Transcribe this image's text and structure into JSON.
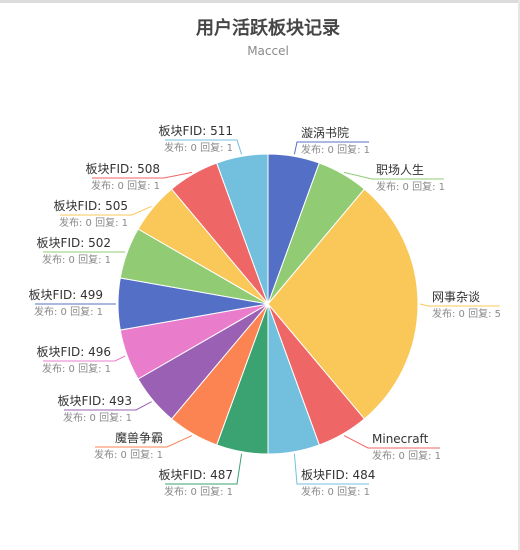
{
  "chart_data": {
    "type": "pie",
    "title": "用户活跃板块记录",
    "subtitle": "Maccel",
    "slices": [
      {
        "name": "漩涡书院",
        "detail": "发布: 0 回复: 1",
        "value": 1,
        "color": "#5470c6"
      },
      {
        "name": "职场人生",
        "detail": "发布: 0 回复: 1",
        "value": 1,
        "color": "#91cc75"
      },
      {
        "name": "网事杂谈",
        "detail": "发布: 0 回复: 5",
        "value": 5,
        "color": "#fac858"
      },
      {
        "name": "Minecraft",
        "detail": "发布: 0 回复: 1",
        "value": 1,
        "color": "#ee6666"
      },
      {
        "name": "板块FID: 484",
        "detail": "发布: 0 回复: 1",
        "value": 1,
        "color": "#73c0de"
      },
      {
        "name": "板块FID: 487",
        "detail": "发布: 0 回复: 1",
        "value": 1,
        "color": "#3ba272"
      },
      {
        "name": "魔兽争霸",
        "detail": "发布: 0 回复: 1",
        "value": 1,
        "color": "#fc8452"
      },
      {
        "name": "板块FID: 493",
        "detail": "发布: 0 回复: 1",
        "value": 1,
        "color": "#9a60b4"
      },
      {
        "name": "板块FID: 496",
        "detail": "发布: 0 回复: 1",
        "value": 1,
        "color": "#ea7ccc"
      },
      {
        "name": "板块FID: 499",
        "detail": "发布: 0 回复: 1",
        "value": 1,
        "color": "#5470c6"
      },
      {
        "name": "板块FID: 502",
        "detail": "发布: 0 回复: 1",
        "value": 1,
        "color": "#91cc75"
      },
      {
        "name": "板块FID: 505",
        "detail": "发布: 0 回复: 1",
        "value": 1,
        "color": "#fac858"
      },
      {
        "name": "板块FID: 508",
        "detail": "发布: 0 回复: 1",
        "value": 1,
        "color": "#ee6666"
      },
      {
        "name": "板块FID: 511",
        "detail": "发布: 0 回复: 1",
        "value": 1,
        "color": "#73c0de"
      }
    ]
  }
}
